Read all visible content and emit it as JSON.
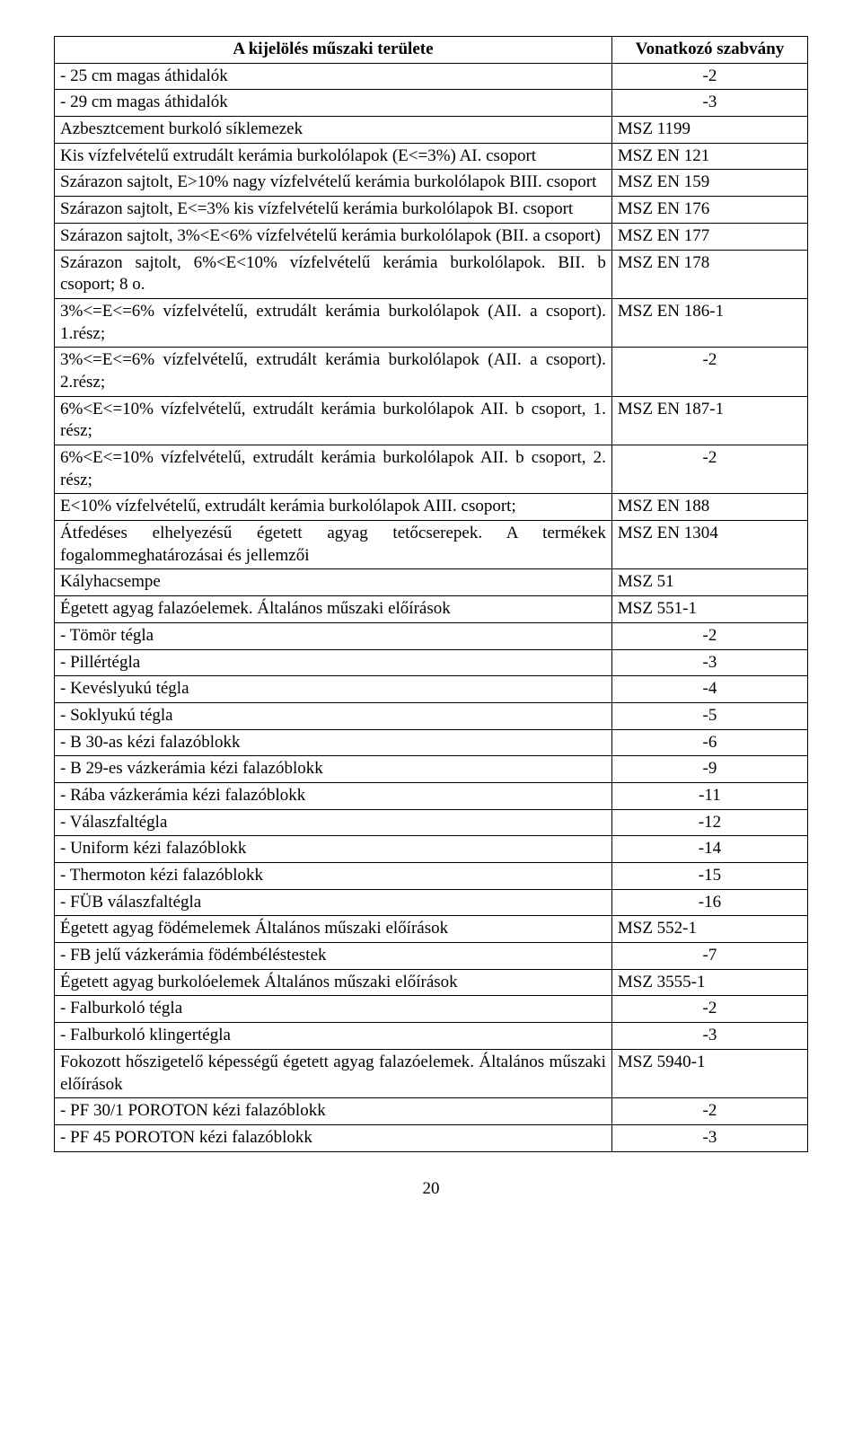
{
  "header": {
    "left": "A kijelölés műszaki területe",
    "right": "Vonatkozó szabvány"
  },
  "rows": [
    {
      "l": "- 25 cm magas áthidalók",
      "r": "-2",
      "ra": "center"
    },
    {
      "l": "- 29 cm magas áthidalók",
      "r": "-3",
      "ra": "center"
    },
    {
      "l": "Azbesztcement burkoló síklemezek",
      "r": "MSZ 1199",
      "ra": "left"
    },
    {
      "l": "Kis vízfelvételű extrudált kerámia burkolólapok (E<=3%) AI. csoport",
      "r": "MSZ EN 121",
      "ra": "left"
    },
    {
      "l": "Szárazon sajtolt, E>10% nagy vízfelvételű kerámia burkolólapok BIII. csoport",
      "r": "MSZ EN 159",
      "ra": "left"
    },
    {
      "l": "Szárazon sajtolt, E<=3% kis vízfelvételű kerámia burkolólapok BI. csoport",
      "r": "MSZ EN 176",
      "ra": "left"
    },
    {
      "l": "Szárazon sajtolt, 3%<E<6% vízfelvételű kerámia burkolólapok (BII. a csoport)",
      "r": "MSZ EN 177",
      "ra": "left"
    },
    {
      "l": "Szárazon sajtolt, 6%<E<10% vízfelvételű kerámia burkolólapok. BII. b csoport; 8 o.",
      "r": "MSZ EN 178",
      "ra": "left"
    },
    {
      "l": "3%<=E<=6% vízfelvételű, extrudált kerámia burkolólapok (AII. a csoport). 1.rész;",
      "r": "MSZ EN 186-1",
      "ra": "left"
    },
    {
      "l": "3%<=E<=6% vízfelvételű, extrudált kerámia burkolólapok (AII. a csoport). 2.rész;",
      "r": "-2",
      "ra": "center"
    },
    {
      "l": "6%<E<=10% vízfelvételű, extrudált kerámia burkolólapok AII. b csoport, 1. rész;",
      "r": "MSZ EN 187-1",
      "ra": "left"
    },
    {
      "l": "6%<E<=10% vízfelvételű, extrudált kerámia burkolólapok AII. b csoport, 2. rész;",
      "r": "-2",
      "ra": "center"
    },
    {
      "l": "E<10% vízfelvételű, extrudált kerámia burkolólapok AIII. csoport;",
      "r": "MSZ EN 188",
      "ra": "left"
    },
    {
      "l": "Átfedéses elhelyezésű égetett agyag tetőcserepek. A termékek fogalommeghatározásai és jellemzői",
      "r": "MSZ EN 1304",
      "ra": "left"
    },
    {
      "l": "Kályhacsempe",
      "r": "MSZ 51",
      "ra": "left"
    },
    {
      "l": "Égetett agyag falazóelemek. Általános műszaki előírások",
      "r": "MSZ 551-1",
      "ra": "left"
    },
    {
      "l": "- Tömör tégla",
      "r": "-2",
      "ra": "center"
    },
    {
      "l": "- Pillértégla",
      "r": "-3",
      "ra": "center"
    },
    {
      "l": "- Kevéslyukú tégla",
      "r": "-4",
      "ra": "center"
    },
    {
      "l": "- Soklyukú tégla",
      "r": "-5",
      "ra": "center"
    },
    {
      "l": "- B 30-as kézi falazóblokk",
      "r": "-6",
      "ra": "center"
    },
    {
      "l": "- B 29-es vázkerámia kézi falazóblokk",
      "r": "-9",
      "ra": "center"
    },
    {
      "l": "- Rába vázkerámia kézi falazóblokk",
      "r": "-11",
      "ra": "center"
    },
    {
      "l": "- Válaszfaltégla",
      "r": "-12",
      "ra": "center"
    },
    {
      "l": "- Uniform kézi falazóblokk",
      "r": "-14",
      "ra": "center"
    },
    {
      "l": "- Thermoton kézi falazóblokk",
      "r": "-15",
      "ra": "center"
    },
    {
      "l": "- FÜB válaszfaltégla",
      "r": "-16",
      "ra": "center"
    },
    {
      "l": "Égetett agyag födémelemek Általános műszaki előírások",
      "r": "MSZ 552-1",
      "ra": "left"
    },
    {
      "l": "- FB jelű vázkerámia födémbéléstestek",
      "r": "-7",
      "ra": "center"
    },
    {
      "l": "Égetett agyag burkolóelemek Általános műszaki előírások",
      "r": "MSZ 3555-1",
      "ra": "left"
    },
    {
      "l": "- Falburkoló tégla",
      "r": "-2",
      "ra": "center"
    },
    {
      "l": "- Falburkoló klingertégla",
      "r": "-3",
      "ra": "center"
    },
    {
      "l": "Fokozott hőszigetelő képességű égetett agyag falazóelemek. Általános műszaki előírások",
      "r": "MSZ 5940-1",
      "ra": "left"
    },
    {
      "l": "- PF 30/1 POROTON kézi falazóblokk",
      "r": "-2",
      "ra": "center"
    },
    {
      "l": "- PF 45 POROTON kézi falazóblokk",
      "r": "-3",
      "ra": "center"
    }
  ],
  "pageNumber": "20",
  "style": {
    "font_family": "Times New Roman",
    "font_size_pt": 14,
    "border_color": "#000000",
    "background_color": "#ffffff",
    "text_color": "#000000",
    "col_widths_pct": [
      74,
      26
    ]
  }
}
